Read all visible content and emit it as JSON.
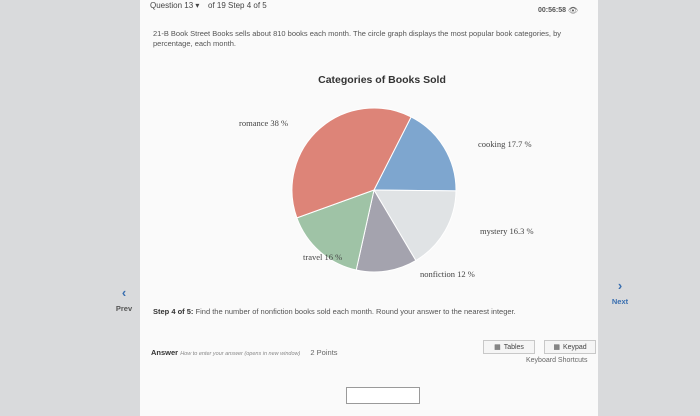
{
  "header": {
    "question_label": "Question 13",
    "question_caret": "▾",
    "step_progress": "of 19 Step 4 of 5",
    "timer": "00:56:58",
    "timer_icon": "eye-icon"
  },
  "problem": {
    "text": "21-B Book Street Books sells about 810 books each month. The circle graph displays the most popular book categories, by percentage, each month."
  },
  "chart_data": {
    "type": "pie",
    "title": "Categories of Books Sold",
    "slices": [
      {
        "label": "romance 38 %",
        "value": 38,
        "color": "#dd8478"
      },
      {
        "label": "cooking 17.7 %",
        "value": 17.7,
        "color": "#7ea6cf"
      },
      {
        "label": "mystery 16.3 %",
        "value": 16.3,
        "color": "#e0e3e5"
      },
      {
        "label": "nonfiction 12 %",
        "value": 12,
        "color": "#a4a3ae"
      },
      {
        "label": "travel 16 %",
        "value": 16,
        "color": "#9fc3a6"
      }
    ]
  },
  "nav": {
    "prev_label": "Prev",
    "prev_icon": "‹",
    "next_label": "Next",
    "next_icon": "›"
  },
  "step": {
    "prefix": "Step 4 of 5:",
    "text": " Find the number of nonfiction books sold each month. Round your answer to the nearest integer."
  },
  "answer": {
    "label": "Answer",
    "help": "How to enter your answer (opens in new window)",
    "points": "2 Points",
    "value": ""
  },
  "tools": {
    "tables_label": "Tables",
    "keypad_label": "Keypad",
    "shortcuts_label": "Keyboard Shortcuts"
  }
}
